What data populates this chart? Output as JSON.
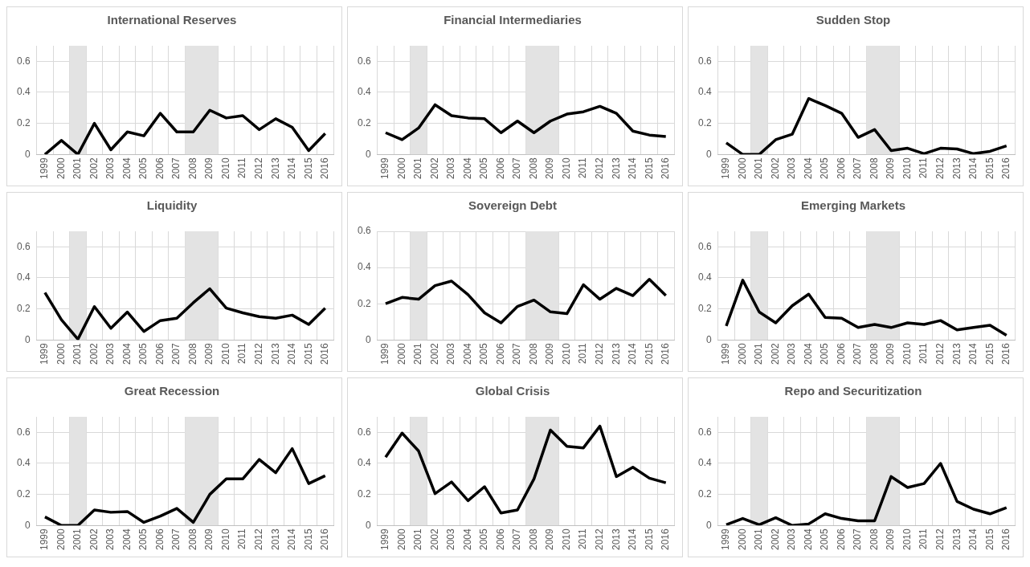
{
  "chart_data": [
    {
      "type": "line",
      "title": "International Reserves",
      "categories": [
        "1999",
        "2000",
        "2001",
        "2002",
        "2003",
        "2004",
        "2005",
        "2006",
        "2007",
        "2008",
        "2009",
        "2010",
        "2011",
        "2012",
        "2013",
        "2014",
        "2015",
        "2016"
      ],
      "values": [
        0,
        0.09,
        0,
        0.2,
        0.03,
        0.145,
        0.12,
        0.265,
        0.145,
        0.145,
        0.285,
        0.235,
        0.25,
        0.16,
        0.23,
        0.175,
        0.025,
        0.135
      ],
      "color": "#000000",
      "ylim": [
        0,
        0.7
      ],
      "yticks": [
        0,
        0.2,
        0.4,
        0.6
      ],
      "grid": true,
      "legend": false,
      "marker": "none",
      "bands": [
        {
          "axis": "x",
          "from": "2001",
          "to": "2001",
          "color": "#e3e3e3"
        },
        {
          "axis": "x",
          "from": "2008",
          "to": "2009",
          "color": "#e3e3e3"
        }
      ]
    },
    {
      "type": "line",
      "title": "Financial Intermediaries",
      "categories": [
        "1999",
        "2000",
        "2001",
        "2002",
        "2003",
        "2004",
        "2005",
        "2006",
        "2007",
        "2008",
        "2009",
        "2010",
        "2011",
        "2012",
        "2013",
        "2014",
        "2015",
        "2016"
      ],
      "values": [
        0.14,
        0.095,
        0.17,
        0.32,
        0.25,
        0.235,
        0.23,
        0.14,
        0.215,
        0.14,
        0.215,
        0.26,
        0.275,
        0.31,
        0.265,
        0.15,
        0.125,
        0.115
      ],
      "color": "#000000",
      "ylim": [
        0,
        0.7
      ],
      "yticks": [
        0,
        0.2,
        0.4,
        0.6
      ],
      "grid": true,
      "legend": false,
      "marker": "none",
      "bands": [
        {
          "axis": "x",
          "from": "2001",
          "to": "2001",
          "color": "#e3e3e3"
        },
        {
          "axis": "x",
          "from": "2008",
          "to": "2009",
          "color": "#e3e3e3"
        }
      ]
    },
    {
      "type": "line",
      "title": "Sudden Stop",
      "categories": [
        "1999",
        "2000",
        "2001",
        "2002",
        "2003",
        "2004",
        "2005",
        "2006",
        "2007",
        "2008",
        "2009",
        "2010",
        "2011",
        "2012",
        "2013",
        "2014",
        "2015",
        "2016"
      ],
      "values": [
        0.075,
        0,
        0,
        0.095,
        0.13,
        0.36,
        0.315,
        0.265,
        0.11,
        0.16,
        0.025,
        0.04,
        0.005,
        0.04,
        0.035,
        0.005,
        0.02,
        0.055
      ],
      "color": "#000000",
      "ylim": [
        0,
        0.7
      ],
      "yticks": [
        0,
        0.2,
        0.4,
        0.6
      ],
      "grid": true,
      "legend": false,
      "marker": "none",
      "bands": [
        {
          "axis": "x",
          "from": "2001",
          "to": "2001",
          "color": "#e3e3e3"
        },
        {
          "axis": "x",
          "from": "2008",
          "to": "2009",
          "color": "#e3e3e3"
        }
      ]
    },
    {
      "type": "line",
      "title": "Liquidity",
      "categories": [
        "1999",
        "2000",
        "2001",
        "2002",
        "2003",
        "2004",
        "2005",
        "2006",
        "2007",
        "2008",
        "2009",
        "2010",
        "2011",
        "2012",
        "2013",
        "2014",
        "2015",
        "2016"
      ],
      "values": [
        0.305,
        0.13,
        0.005,
        0.215,
        0.075,
        0.18,
        0.055,
        0.125,
        0.14,
        0.24,
        0.33,
        0.205,
        0.175,
        0.15,
        0.14,
        0.16,
        0.1,
        0.205
      ],
      "color": "#000000",
      "ylim": [
        0,
        0.7
      ],
      "yticks": [
        0,
        0.2,
        0.4,
        0.6
      ],
      "grid": true,
      "legend": false,
      "marker": "none",
      "bands": [
        {
          "axis": "x",
          "from": "2001",
          "to": "2001",
          "color": "#e3e3e3"
        },
        {
          "axis": "x",
          "from": "2008",
          "to": "2009",
          "color": "#e3e3e3"
        }
      ]
    },
    {
      "type": "line",
      "title": "Sovereign Debt",
      "categories": [
        "1999",
        "2000",
        "2001",
        "2002",
        "2003",
        "2004",
        "2005",
        "2006",
        "2007",
        "2008",
        "2009",
        "2010",
        "2011",
        "2012",
        "2013",
        "2014",
        "2015",
        "2016"
      ],
      "values": [
        0.2,
        0.235,
        0.225,
        0.3,
        0.325,
        0.25,
        0.15,
        0.095,
        0.185,
        0.22,
        0.155,
        0.145,
        0.305,
        0.225,
        0.285,
        0.245,
        0.335,
        0.245
      ],
      "color": "#000000",
      "ylim": [
        0,
        0.6
      ],
      "yticks": [
        0,
        0.2,
        0.4,
        0.6
      ],
      "grid": true,
      "legend": false,
      "marker": "none",
      "bands": [
        {
          "axis": "x",
          "from": "2001",
          "to": "2001",
          "color": "#e3e3e3"
        },
        {
          "axis": "x",
          "from": "2008",
          "to": "2009",
          "color": "#e3e3e3"
        }
      ]
    },
    {
      "type": "line",
      "title": "Emerging Markets",
      "categories": [
        "1999",
        "2000",
        "2001",
        "2002",
        "2003",
        "2004",
        "2005",
        "2006",
        "2007",
        "2008",
        "2009",
        "2010",
        "2011",
        "2012",
        "2013",
        "2014",
        "2015",
        "2016"
      ],
      "values": [
        0.09,
        0.385,
        0.18,
        0.11,
        0.22,
        0.295,
        0.145,
        0.14,
        0.08,
        0.1,
        0.08,
        0.11,
        0.1,
        0.125,
        0.065,
        0.08,
        0.095,
        0.03
      ],
      "color": "#000000",
      "ylim": [
        0,
        0.7
      ],
      "yticks": [
        0,
        0.2,
        0.4,
        0.6
      ],
      "grid": true,
      "legend": false,
      "marker": "none",
      "bands": [
        {
          "axis": "x",
          "from": "2001",
          "to": "2001",
          "color": "#e3e3e3"
        },
        {
          "axis": "x",
          "from": "2008",
          "to": "2009",
          "color": "#e3e3e3"
        }
      ]
    },
    {
      "type": "line",
      "title": "Great Recession",
      "categories": [
        "1999",
        "2000",
        "2001",
        "2002",
        "2003",
        "2004",
        "2005",
        "2006",
        "2007",
        "2008",
        "2009",
        "2010",
        "2011",
        "2012",
        "2013",
        "2014",
        "2015",
        "2016"
      ],
      "values": [
        0.055,
        0,
        0,
        0.1,
        0.085,
        0.09,
        0.02,
        0.06,
        0.11,
        0.02,
        0.2,
        0.3,
        0.3,
        0.425,
        0.34,
        0.495,
        0.27,
        0.32
      ],
      "color": "#000000",
      "ylim": [
        0,
        0.7
      ],
      "yticks": [
        0,
        0.2,
        0.4,
        0.6
      ],
      "grid": true,
      "legend": false,
      "marker": "none",
      "bands": [
        {
          "axis": "x",
          "from": "2001",
          "to": "2001",
          "color": "#e3e3e3"
        },
        {
          "axis": "x",
          "from": "2008",
          "to": "2009",
          "color": "#e3e3e3"
        }
      ]
    },
    {
      "type": "line",
      "title": "Global Crisis",
      "categories": [
        "1999",
        "2000",
        "2001",
        "2002",
        "2003",
        "2004",
        "2005",
        "2006",
        "2007",
        "2008",
        "2009",
        "2010",
        "2011",
        "2012",
        "2013",
        "2014",
        "2015",
        "2016"
      ],
      "values": [
        0.44,
        0.595,
        0.48,
        0.205,
        0.28,
        0.16,
        0.25,
        0.08,
        0.1,
        0.3,
        0.615,
        0.51,
        0.5,
        0.64,
        0.315,
        0.375,
        0.305,
        0.275
      ],
      "color": "#000000",
      "ylim": [
        0,
        0.7
      ],
      "yticks": [
        0,
        0.2,
        0.4,
        0.6
      ],
      "grid": true,
      "legend": false,
      "marker": "none",
      "bands": [
        {
          "axis": "x",
          "from": "2001",
          "to": "2001",
          "color": "#e3e3e3"
        },
        {
          "axis": "x",
          "from": "2008",
          "to": "2009",
          "color": "#e3e3e3"
        }
      ]
    },
    {
      "type": "line",
      "title": "Repo and Securitization",
      "categories": [
        "1999",
        "2000",
        "2001",
        "2002",
        "2003",
        "2004",
        "2005",
        "2006",
        "2007",
        "2008",
        "2009",
        "2010",
        "2011",
        "2012",
        "2013",
        "2014",
        "2015",
        "2016"
      ],
      "values": [
        0.005,
        0.045,
        0.005,
        0.05,
        0,
        0.01,
        0.075,
        0.045,
        0.03,
        0.03,
        0.315,
        0.245,
        0.27,
        0.4,
        0.155,
        0.105,
        0.075,
        0.115
      ],
      "color": "#000000",
      "ylim": [
        0,
        0.7
      ],
      "yticks": [
        0,
        0.2,
        0.4,
        0.6
      ],
      "grid": true,
      "legend": false,
      "marker": "none",
      "bands": [
        {
          "axis": "x",
          "from": "2001",
          "to": "2001",
          "color": "#e3e3e3"
        },
        {
          "axis": "x",
          "from": "2008",
          "to": "2009",
          "color": "#e3e3e3"
        }
      ]
    }
  ]
}
